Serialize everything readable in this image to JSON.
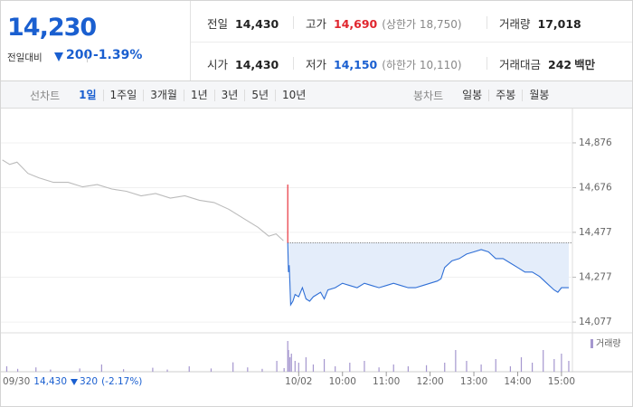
{
  "header": {
    "price": "14,230",
    "change_label": "전일대비",
    "change": "200",
    "change_rate": "-1.39%"
  },
  "stats": [
    {
      "label": "전일",
      "value": "14,430"
    },
    {
      "label": "고가",
      "value": "14,690",
      "note": "(상한가 18,750)"
    },
    {
      "label": "거래량",
      "value": "17,018"
    },
    {
      "label": "시가",
      "value": "14,430"
    },
    {
      "label": "저가",
      "value": "14,150",
      "note": "(하한가 10,110)"
    },
    {
      "label": "거래대금",
      "value": "242",
      "unit": "백만"
    }
  ],
  "line_tabs": {
    "label": "선차트",
    "items": [
      "1일",
      "1주일",
      "3개월",
      "1년",
      "3년",
      "5년",
      "10년"
    ],
    "selected": 0
  },
  "candle_tabs": {
    "label": "봉차트",
    "items": [
      "일봉",
      "주봉",
      "월봉"
    ]
  },
  "prev_info": {
    "date": "09/30",
    "price": "14,430",
    "change": "320",
    "rate": "(-2.17%)"
  },
  "chart_data": {
    "type": "line",
    "xlim": [
      -408,
      375
    ],
    "ylim": [
      14037,
      15025
    ],
    "yticks": [
      {
        "value": 14876,
        "label": "14,876"
      },
      {
        "value": 14676,
        "label": "14,676"
      },
      {
        "value": 14477,
        "label": "14,477"
      },
      {
        "value": 14277,
        "label": "14,277"
      },
      {
        "value": 14077,
        "label": "14,077"
      }
    ],
    "xticks": [
      {
        "value": 0,
        "label": "10/02"
      },
      {
        "value": 60,
        "label": "10:00"
      },
      {
        "value": 120,
        "label": "11:00"
      },
      {
        "value": 180,
        "label": "12:00"
      },
      {
        "value": 240,
        "label": "13:00"
      },
      {
        "value": 300,
        "label": "14:00"
      },
      {
        "value": 360,
        "label": "15:00"
      }
    ],
    "grid": true,
    "reference": {
      "value": 14430,
      "color": "#666666"
    },
    "spike": {
      "x": -15,
      "values": [
        14430,
        14690
      ],
      "color": "#e8323c"
    },
    "series": [
      {
        "color": "#bbbbbb",
        "x": [
          -406,
          -396,
          -386,
          -371,
          -356,
          -336,
          -316,
          -296,
          -276,
          -256,
          -236,
          -216,
          -196,
          -176,
          -156,
          -136,
          -116,
          -96,
          -76,
          -56,
          -41,
          -31,
          -21
        ],
        "values": [
          14800,
          14780,
          14790,
          14740,
          14720,
          14700,
          14700,
          14680,
          14690,
          14670,
          14660,
          14640,
          14650,
          14630,
          14640,
          14620,
          14610,
          14580,
          14540,
          14500,
          14460,
          14470,
          14440
        ]
      },
      {
        "color": "#2f6fd6",
        "fill": "#e4edfa",
        "x": [
          -15,
          -14,
          -13,
          -12,
          -11,
          -8,
          -5,
          0,
          5,
          10,
          15,
          20,
          25,
          30,
          35,
          40,
          50,
          60,
          70,
          80,
          90,
          100,
          110,
          120,
          130,
          140,
          150,
          160,
          170,
          180,
          190,
          195,
          200,
          210,
          220,
          230,
          240,
          250,
          260,
          270,
          280,
          290,
          300,
          310,
          320,
          330,
          340,
          350,
          355,
          360,
          370
        ],
        "values": [
          14430,
          14300,
          14330,
          14250,
          14154,
          14170,
          14200,
          14190,
          14230,
          14180,
          14170,
          14190,
          14200,
          14210,
          14180,
          14220,
          14230,
          14250,
          14240,
          14230,
          14250,
          14240,
          14230,
          14240,
          14250,
          14240,
          14230,
          14230,
          14240,
          14250,
          14260,
          14270,
          14320,
          14350,
          14360,
          14380,
          14390,
          14400,
          14390,
          14360,
          14360,
          14340,
          14320,
          14300,
          14300,
          14280,
          14250,
          14220,
          14210,
          14230,
          14230
        ]
      }
    ],
    "volume": {
      "name": "거래량",
      "color": "#a597cf",
      "vlim": [
        0,
        1000
      ],
      "x": [
        -400,
        -385,
        -360,
        -340,
        -300,
        -270,
        -240,
        -200,
        -180,
        -150,
        -120,
        -90,
        -70,
        -50,
        -30,
        -20,
        -15,
        -14,
        -12,
        -10,
        -5,
        0,
        10,
        20,
        35,
        50,
        70,
        90,
        110,
        130,
        150,
        175,
        200,
        215,
        230,
        250,
        270,
        290,
        305,
        320,
        335,
        350,
        360,
        370
      ],
      "values": [
        150,
        80,
        120,
        60,
        90,
        200,
        70,
        110,
        60,
        150,
        90,
        260,
        120,
        80,
        300,
        100,
        850,
        600,
        400,
        500,
        300,
        250,
        400,
        200,
        350,
        150,
        250,
        300,
        120,
        200,
        150,
        180,
        250,
        600,
        300,
        200,
        350,
        150,
        400,
        250,
        600,
        350,
        500,
        300
      ]
    }
  }
}
